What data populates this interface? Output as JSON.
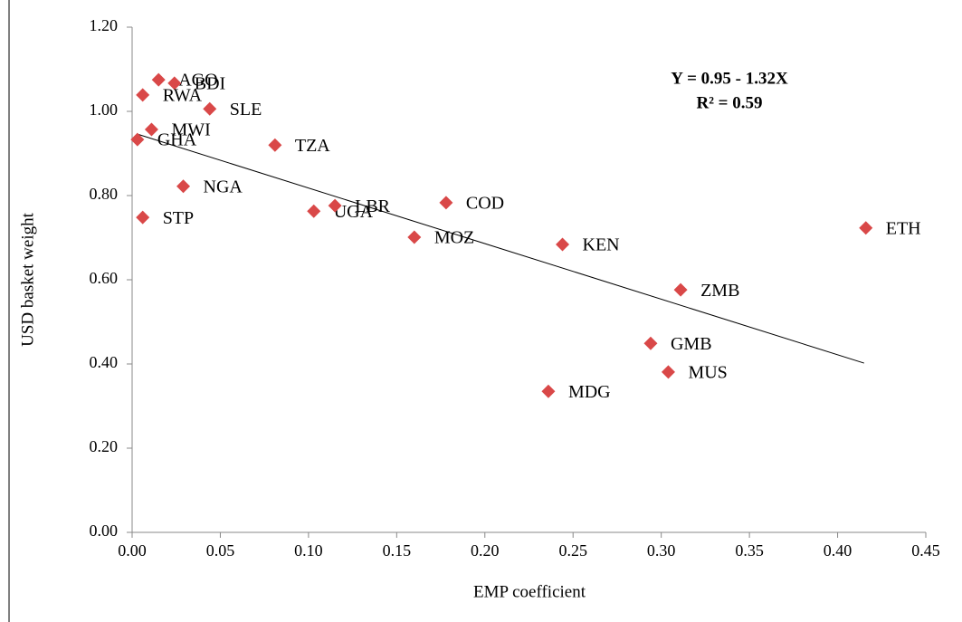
{
  "chart_data": {
    "type": "scatter",
    "x_label": "EMP coefficient",
    "y_label": "USD basket weight",
    "annotations": [
      "Y = 0.95 - 1.32X",
      "R² = 0.59"
    ],
    "color": "#d94848",
    "labels": [
      "AGO",
      "BDI",
      "RWA",
      "SLE",
      "MWI",
      "GHA",
      "TZA",
      "NGA",
      "STP",
      "UGA",
      "LBR",
      "COD",
      "MOZ",
      "KEN",
      "ETH",
      "ZMB",
      "GMB",
      "MUS",
      "MDG"
    ],
    "x": [
      0.015,
      0.024,
      0.006,
      0.044,
      0.011,
      0.003,
      0.081,
      0.029,
      0.006,
      0.103,
      0.115,
      0.178,
      0.16,
      0.244,
      0.416,
      0.311,
      0.294,
      0.304,
      0.236
    ],
    "y": [
      1.075,
      1.067,
      1.039,
      1.006,
      0.957,
      0.933,
      0.92,
      0.822,
      0.748,
      0.763,
      0.776,
      0.783,
      0.701,
      0.684,
      0.723,
      0.576,
      0.449,
      0.381,
      0.335
    ],
    "trendline": {
      "x": [
        0.003,
        0.415
      ],
      "y": [
        0.946,
        0.402
      ]
    },
    "xlim": [
      0,
      0.45
    ],
    "xticks": [
      {
        "value": 0,
        "label": "0.00"
      },
      {
        "value": 0.05,
        "label": "0.05"
      },
      {
        "value": 0.1,
        "label": "0.10"
      },
      {
        "value": 0.15,
        "label": "0.15"
      },
      {
        "value": 0.2,
        "label": "0.20"
      },
      {
        "value": 0.25,
        "label": "0.25"
      },
      {
        "value": 0.3,
        "label": "0.30"
      },
      {
        "value": 0.35,
        "label": "0.35"
      },
      {
        "value": 0.4,
        "label": "0.40"
      },
      {
        "value": 0.45,
        "label": "0.45"
      }
    ],
    "ylim": [
      0,
      1.2
    ],
    "yticks": [
      {
        "value": 0,
        "label": "0.00"
      },
      {
        "value": 0.2,
        "label": "0.20"
      },
      {
        "value": 0.4,
        "label": "0.40"
      },
      {
        "value": 0.6,
        "label": "0.60"
      },
      {
        "value": 0.8,
        "label": "0.80"
      },
      {
        "value": 1,
        "label": "1.00"
      },
      {
        "value": 1.2,
        "label": "1.20"
      }
    ]
  }
}
